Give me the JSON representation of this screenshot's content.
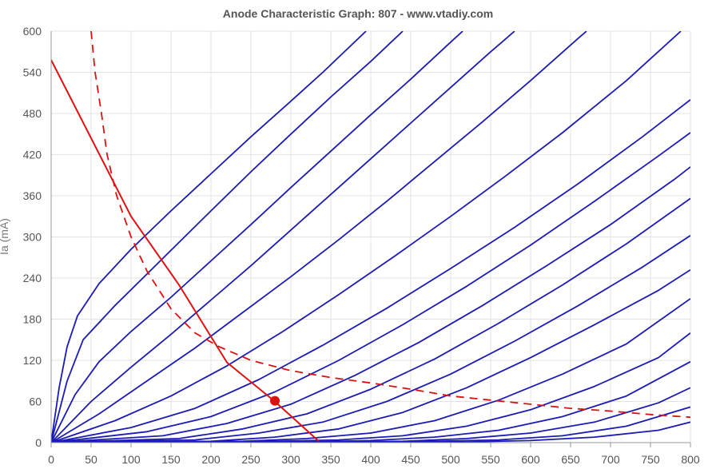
{
  "chart_data": {
    "type": "line",
    "title": "Anode Characteristic Graph: 807 - www.vtadiy.com",
    "xlabel": "",
    "ylabel": "Ia (mA)",
    "xlim": [
      0,
      800
    ],
    "ylim": [
      0,
      600
    ],
    "xticks": [
      "0",
      "50",
      "100",
      "150",
      "200",
      "250",
      "300",
      "350",
      "400",
      "450",
      "500",
      "550",
      "600",
      "650",
      "700",
      "750",
      "800"
    ],
    "yticks": [
      "0",
      "60",
      "120",
      "180",
      "240",
      "300",
      "360",
      "420",
      "480",
      "540",
      "600"
    ],
    "grid": true,
    "colors": {
      "curves": "#1b1bb5",
      "load_line": "#dd1111",
      "grid": "#e3e3e3",
      "axis": "#999999"
    },
    "series": [
      {
        "values": [
          [
            0,
            0
          ],
          [
            10,
            80
          ],
          [
            20,
            140
          ],
          [
            33,
            185
          ],
          [
            60,
            232
          ],
          [
            100,
            282
          ],
          [
            150,
            338
          ],
          [
            200,
            392
          ],
          [
            250,
            446
          ],
          [
            300,
            498
          ],
          [
            340,
            540
          ],
          [
            394,
            600
          ]
        ]
      },
      {
        "values": [
          [
            0,
            0
          ],
          [
            20,
            90
          ],
          [
            40,
            150
          ],
          [
            80,
            200
          ],
          [
            120,
            246
          ],
          [
            160,
            292
          ],
          [
            200,
            338
          ],
          [
            250,
            395
          ],
          [
            300,
            450
          ],
          [
            350,
            504
          ],
          [
            400,
            556
          ],
          [
            440,
            600
          ]
        ]
      },
      {
        "values": [
          [
            0,
            0
          ],
          [
            30,
            70
          ],
          [
            60,
            118
          ],
          [
            100,
            162
          ],
          [
            150,
            212
          ],
          [
            200,
            265
          ],
          [
            250,
            318
          ],
          [
            300,
            372
          ],
          [
            350,
            425
          ],
          [
            400,
            478
          ],
          [
            450,
            530
          ],
          [
            500,
            584
          ],
          [
            515,
            600
          ]
        ]
      },
      {
        "values": [
          [
            0,
            0
          ],
          [
            50,
            60
          ],
          [
            100,
            110
          ],
          [
            150,
            158
          ],
          [
            200,
            208
          ],
          [
            250,
            258
          ],
          [
            300,
            310
          ],
          [
            350,
            362
          ],
          [
            400,
            414
          ],
          [
            450,
            466
          ],
          [
            500,
            518
          ],
          [
            550,
            570
          ],
          [
            580,
            600
          ]
        ]
      },
      {
        "values": [
          [
            0,
            0
          ],
          [
            60,
            42
          ],
          [
            120,
            90
          ],
          [
            180,
            138
          ],
          [
            240,
            190
          ],
          [
            300,
            242
          ],
          [
            360,
            296
          ],
          [
            420,
            352
          ],
          [
            480,
            410
          ],
          [
            540,
            468
          ],
          [
            600,
            528
          ],
          [
            660,
            590
          ],
          [
            670,
            600
          ]
        ]
      },
      {
        "values": [
          [
            0,
            0
          ],
          [
            80,
            32
          ],
          [
            150,
            68
          ],
          [
            220,
            112
          ],
          [
            290,
            162
          ],
          [
            360,
            216
          ],
          [
            430,
            272
          ],
          [
            500,
            330
          ],
          [
            570,
            390
          ],
          [
            640,
            452
          ],
          [
            720,
            528
          ],
          [
            788,
            600
          ]
        ]
      },
      {
        "values": [
          [
            0,
            0
          ],
          [
            100,
            22
          ],
          [
            180,
            50
          ],
          [
            260,
            92
          ],
          [
            340,
            142
          ],
          [
            420,
            196
          ],
          [
            500,
            254
          ],
          [
            580,
            314
          ],
          [
            660,
            378
          ],
          [
            740,
            446
          ],
          [
            800,
            500
          ]
        ]
      },
      {
        "values": [
          [
            0,
            0
          ],
          [
            120,
            16
          ],
          [
            200,
            38
          ],
          [
            280,
            74
          ],
          [
            360,
            120
          ],
          [
            440,
            172
          ],
          [
            520,
            228
          ],
          [
            600,
            288
          ],
          [
            680,
            352
          ],
          [
            760,
            418
          ],
          [
            800,
            452
          ]
        ]
      },
      {
        "values": [
          [
            0,
            0
          ],
          [
            140,
            10
          ],
          [
            220,
            28
          ],
          [
            300,
            56
          ],
          [
            380,
            98
          ],
          [
            460,
            146
          ],
          [
            540,
            200
          ],
          [
            620,
            258
          ],
          [
            700,
            318
          ],
          [
            780,
            384
          ],
          [
            800,
            402
          ]
        ]
      },
      {
        "values": [
          [
            0,
            0
          ],
          [
            160,
            6
          ],
          [
            240,
            20
          ],
          [
            320,
            42
          ],
          [
            400,
            78
          ],
          [
            480,
            122
          ],
          [
            560,
            174
          ],
          [
            640,
            230
          ],
          [
            720,
            290
          ],
          [
            800,
            356
          ]
        ]
      },
      {
        "values": [
          [
            0,
            0
          ],
          [
            180,
            4
          ],
          [
            260,
            14
          ],
          [
            340,
            30
          ],
          [
            420,
            60
          ],
          [
            500,
            100
          ],
          [
            580,
            148
          ],
          [
            660,
            200
          ],
          [
            740,
            256
          ],
          [
            800,
            302
          ]
        ]
      },
      {
        "values": [
          [
            0,
            0
          ],
          [
            200,
            2
          ],
          [
            280,
            8
          ],
          [
            360,
            20
          ],
          [
            440,
            44
          ],
          [
            520,
            80
          ],
          [
            600,
            124
          ],
          [
            680,
            172
          ],
          [
            760,
            222
          ],
          [
            800,
            252
          ]
        ]
      },
      {
        "values": [
          [
            0,
            0
          ],
          [
            240,
            2
          ],
          [
            320,
            6
          ],
          [
            400,
            14
          ],
          [
            480,
            32
          ],
          [
            560,
            62
          ],
          [
            640,
            100
          ],
          [
            720,
            144
          ],
          [
            800,
            210
          ]
        ]
      },
      {
        "values": [
          [
            0,
            0
          ],
          [
            280,
            2
          ],
          [
            360,
            4
          ],
          [
            440,
            10
          ],
          [
            520,
            24
          ],
          [
            600,
            48
          ],
          [
            680,
            82
          ],
          [
            760,
            124
          ],
          [
            800,
            160
          ]
        ]
      },
      {
        "values": [
          [
            0,
            0
          ],
          [
            320,
            1
          ],
          [
            400,
            3
          ],
          [
            480,
            8
          ],
          [
            560,
            18
          ],
          [
            640,
            38
          ],
          [
            720,
            68
          ],
          [
            800,
            118
          ]
        ]
      },
      {
        "values": [
          [
            0,
            0
          ],
          [
            360,
            1
          ],
          [
            440,
            2
          ],
          [
            520,
            6
          ],
          [
            600,
            14
          ],
          [
            680,
            30
          ],
          [
            760,
            58
          ],
          [
            800,
            80
          ]
        ]
      },
      {
        "values": [
          [
            0,
            0
          ],
          [
            400,
            1
          ],
          [
            480,
            2
          ],
          [
            560,
            4
          ],
          [
            640,
            10
          ],
          [
            720,
            24
          ],
          [
            800,
            52
          ]
        ]
      },
      {
        "values": [
          [
            0,
            0
          ],
          [
            440,
            0
          ],
          [
            520,
            1
          ],
          [
            600,
            3
          ],
          [
            680,
            8
          ],
          [
            760,
            18
          ],
          [
            800,
            30
          ]
        ]
      }
    ],
    "load_line": {
      "values": [
        [
          0,
          558
        ],
        [
          100,
          330
        ],
        [
          160,
          230
        ],
        [
          220,
          117
        ],
        [
          280,
          60
        ],
        [
          335,
          2
        ]
      ]
    },
    "power_curve": {
      "values": [
        [
          50,
          600
        ],
        [
          55,
          540
        ],
        [
          63,
          480
        ],
        [
          70,
          420
        ],
        [
          82,
          360
        ],
        [
          100,
          300
        ],
        [
          120,
          250
        ],
        [
          150,
          195
        ],
        [
          180,
          160
        ],
        [
          210,
          140
        ],
        [
          250,
          120
        ],
        [
          300,
          105
        ],
        [
          350,
          95
        ],
        [
          400,
          87
        ],
        [
          450,
          78
        ],
        [
          500,
          68
        ],
        [
          550,
          62
        ],
        [
          600,
          56
        ],
        [
          650,
          50
        ],
        [
          700,
          46
        ],
        [
          750,
          41
        ],
        [
          800,
          37
        ]
      ]
    },
    "operating_point": {
      "x": 280,
      "y": 61
    }
  }
}
